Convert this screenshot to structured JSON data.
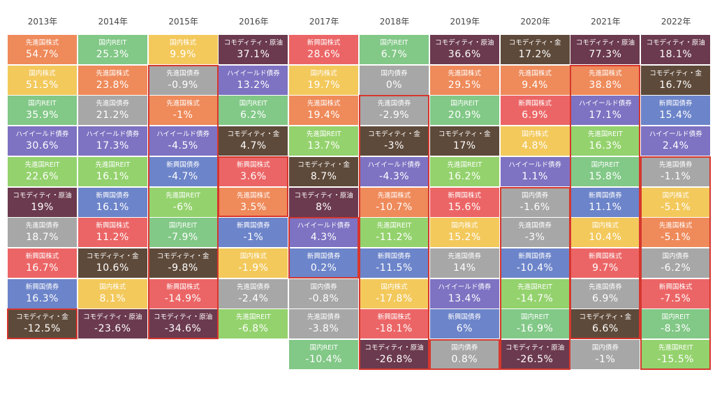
{
  "chart_data": {
    "type": "table",
    "title": "",
    "years": [
      "2013年",
      "2014年",
      "2015年",
      "2016年",
      "2017年",
      "2018年",
      "2019年",
      "2020年",
      "2021年",
      "2022年"
    ],
    "colors": {
      "先進国株式": "#ef8a5a",
      "国内株式": "#f3c95c",
      "国内REIT": "#82c887",
      "先進国REIT": "#94d26d",
      "ハイイールド債券": "#7e72c2",
      "コモディティ・原油": "#6b3a4e",
      "コモディティ・金": "#5e4a3a",
      "新興国株式": "#ec6566",
      "新興国債券": "#6c84c9",
      "先進国債券": "#a7a7a7",
      "国内債券": "#a7a7a7"
    },
    "columns": [
      [
        {
          "label": "先進国株式",
          "value": "54.7%"
        },
        {
          "label": "国内株式",
          "value": "51.5%"
        },
        {
          "label": "国内REIT",
          "value": "35.9%"
        },
        {
          "label": "ハイイールド債券",
          "value": "30.6%"
        },
        {
          "label": "先進国REIT",
          "value": "22.6%"
        },
        {
          "label": "コモディティ・原油",
          "value": "19%"
        },
        {
          "label": "先進国債券",
          "value": "18.7%"
        },
        {
          "label": "新興国株式",
          "value": "16.7%"
        },
        {
          "label": "新興国債券",
          "value": "16.3%"
        },
        {
          "label": "コモディティ・金",
          "value": "-12.5%"
        }
      ],
      [
        {
          "label": "国内REIT",
          "value": "25.3%"
        },
        {
          "label": "先進国株式",
          "value": "23.8%"
        },
        {
          "label": "先進国債券",
          "value": "21.2%"
        },
        {
          "label": "ハイイールド債券",
          "value": "17.3%"
        },
        {
          "label": "先進国REIT",
          "value": "16.1%"
        },
        {
          "label": "新興国債券",
          "value": "16.1%"
        },
        {
          "label": "新興国株式",
          "value": "11.2%"
        },
        {
          "label": "コモディティ・金",
          "value": "10.6%"
        },
        {
          "label": "国内株式",
          "value": "8.1%"
        },
        {
          "label": "コモディティ・原油",
          "value": "-23.6%"
        }
      ],
      [
        {
          "label": "国内株式",
          "value": "9.9%"
        },
        {
          "label": "先進国債券",
          "value": "-0.9%"
        },
        {
          "label": "先進国株式",
          "value": "-1%"
        },
        {
          "label": "ハイイールド債券",
          "value": "-4.5%"
        },
        {
          "label": "新興国債券",
          "value": "-4.7%"
        },
        {
          "label": "先進国REIT",
          "value": "-6%"
        },
        {
          "label": "国内REIT",
          "value": "-7.9%"
        },
        {
          "label": "コモディティ・金",
          "value": "-9.8%"
        },
        {
          "label": "新興国株式",
          "value": "-14.9%"
        },
        {
          "label": "コモディティ・原油",
          "value": "-34.6%"
        }
      ],
      [
        {
          "label": "コモディティ・原油",
          "value": "37.1%"
        },
        {
          "label": "ハイイールド債券",
          "value": "13.2%"
        },
        {
          "label": "国内REIT",
          "value": "6.2%"
        },
        {
          "label": "コモディティ・金",
          "value": "4.7%"
        },
        {
          "label": "新興国株式",
          "value": "3.6%"
        },
        {
          "label": "先進国株式",
          "value": "3.5%"
        },
        {
          "label": "新興国債券",
          "value": "-1%"
        },
        {
          "label": "国内株式",
          "value": "-1.9%"
        },
        {
          "label": "先進国債券",
          "value": "-2.4%"
        },
        {
          "label": "先進国REIT",
          "value": "-6.8%"
        }
      ],
      [
        {
          "label": "新興国株式",
          "value": "28.6%"
        },
        {
          "label": "国内株式",
          "value": "19.7%"
        },
        {
          "label": "先進国株式",
          "value": "19.4%"
        },
        {
          "label": "先進国REIT",
          "value": "13.7%"
        },
        {
          "label": "コモディティ・金",
          "value": "8.7%"
        },
        {
          "label": "コモディティ・原油",
          "value": "8%"
        },
        {
          "label": "ハイイールド債券",
          "value": "4.3%"
        },
        {
          "label": "新興国債券",
          "value": "0.2%"
        },
        {
          "label": "国内債券",
          "value": "-0.8%"
        },
        {
          "label": "先進国債券",
          "value": "-3.8%"
        },
        {
          "label": "国内REIT",
          "value": "-10.4%"
        }
      ],
      [
        {
          "label": "国内REIT",
          "value": "6.7%"
        },
        {
          "label": "国内債券",
          "value": "0%"
        },
        {
          "label": "先進国債券",
          "value": "-2.9%"
        },
        {
          "label": "コモディティ・金",
          "value": "-3%"
        },
        {
          "label": "ハイイールド債券",
          "value": "-4.3%"
        },
        {
          "label": "先進国株式",
          "value": "-10.7%"
        },
        {
          "label": "先進国REIT",
          "value": "-11.2%"
        },
        {
          "label": "新興国債券",
          "value": "-11.5%"
        },
        {
          "label": "国内株式",
          "value": "-17.8%"
        },
        {
          "label": "新興国株式",
          "value": "-18.1%"
        },
        {
          "label": "コモディティ・原油",
          "value": "-26.8%"
        }
      ],
      [
        {
          "label": "コモディティ・原油",
          "value": "36.6%"
        },
        {
          "label": "先進国株式",
          "value": "29.5%"
        },
        {
          "label": "国内REIT",
          "value": "20.9%"
        },
        {
          "label": "コモディティ・金",
          "value": "17%"
        },
        {
          "label": "先進国REIT",
          "value": "16.2%"
        },
        {
          "label": "新興国株式",
          "value": "15.6%"
        },
        {
          "label": "国内株式",
          "value": "15.2%"
        },
        {
          "label": "先進国債券",
          "value": "14%"
        },
        {
          "label": "ハイイールド債券",
          "value": "13.4%"
        },
        {
          "label": "新興国債券",
          "value": "6%"
        },
        {
          "label": "国内債券",
          "value": "0.8%"
        }
      ],
      [
        {
          "label": "コモディティ・金",
          "value": "17.2%"
        },
        {
          "label": "先進国株式",
          "value": "9.4%"
        },
        {
          "label": "新興国株式",
          "value": "6.9%"
        },
        {
          "label": "国内株式",
          "value": "4.8%"
        },
        {
          "label": "ハイイールド債券",
          "value": "1.1%"
        },
        {
          "label": "国内債券",
          "value": "-1.6%"
        },
        {
          "label": "先進国債券",
          "value": "-3%"
        },
        {
          "label": "新興国債券",
          "value": "-10.4%"
        },
        {
          "label": "先進国REIT",
          "value": "-14.7%"
        },
        {
          "label": "国内REIT",
          "value": "-16.9%"
        },
        {
          "label": "コモディティ・原油",
          "value": "-26.5%"
        }
      ],
      [
        {
          "label": "コモディティ・原油",
          "value": "77.3%"
        },
        {
          "label": "先進国株式",
          "value": "38.8%"
        },
        {
          "label": "ハイイールド債券",
          "value": "17.1%"
        },
        {
          "label": "先進国REIT",
          "value": "16.3%"
        },
        {
          "label": "国内REIT",
          "value": "15.8%"
        },
        {
          "label": "新興国債券",
          "value": "11.1%"
        },
        {
          "label": "国内株式",
          "value": "10.4%"
        },
        {
          "label": "新興国株式",
          "value": "9.7%"
        },
        {
          "label": "先進国債券",
          "value": "6.9%"
        },
        {
          "label": "コモディティ・金",
          "value": "6.6%"
        },
        {
          "label": "国内債券",
          "value": "-1%"
        }
      ],
      [
        {
          "label": "コモディティ・原油",
          "value": "18.1%"
        },
        {
          "label": "コモディティ・金",
          "value": "16.7%"
        },
        {
          "label": "新興国債券",
          "value": "15.4%"
        },
        {
          "label": "ハイイールド債券",
          "value": "2.4%"
        },
        {
          "label": "先進国債券",
          "value": "-1.1%"
        },
        {
          "label": "国内株式",
          "value": "-5.1%"
        },
        {
          "label": "先進国株式",
          "value": "-5.1%"
        },
        {
          "label": "国内債券",
          "value": "-6.2%"
        },
        {
          "label": "新興国株式",
          "value": "-7.5%"
        },
        {
          "label": "国内REIT",
          "value": "-8.3%"
        },
        {
          "label": "先進国REIT",
          "value": "-15.5%"
        }
      ]
    ],
    "highlight_color": "#d6372e",
    "highlights": [
      {
        "col": 0,
        "from": 9,
        "to": 9
      },
      {
        "col": 2,
        "from": 1,
        "to": 9
      },
      {
        "col": 3,
        "from": 4,
        "to": 5
      },
      {
        "col": 4,
        "from": 6,
        "to": 7
      },
      {
        "col": 5,
        "from": 2,
        "to": 10
      },
      {
        "col": 6,
        "from": 10,
        "to": 10
      },
      {
        "col": 7,
        "from": 5,
        "to": 10
      },
      {
        "col": 8,
        "from": 1,
        "to": 9
      },
      {
        "col": 9,
        "from": 4,
        "to": 10
      }
    ]
  }
}
